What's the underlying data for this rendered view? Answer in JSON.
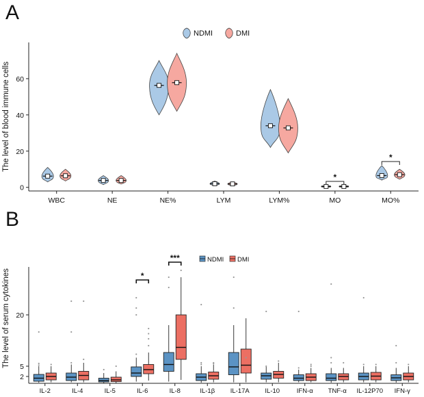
{
  "chart_data": [
    {
      "panel": "A",
      "type": "violin",
      "ylabel": "The level of blood immune cells",
      "ylim": [
        -2,
        80
      ],
      "yticks": [
        0,
        20,
        40,
        60
      ],
      "legend": {
        "position": "top",
        "entries": [
          {
            "name": "NDMI",
            "color": "#aac9e6"
          },
          {
            "name": "DMI",
            "color": "#f6a8a0"
          }
        ]
      },
      "categories": [
        "WBC",
        "NE",
        "NE%",
        "LYM",
        "LYM%",
        "MO",
        "MO%"
      ],
      "series": [
        {
          "name": "NDMI",
          "median": [
            6.2,
            3.8,
            56.3,
            2.0,
            34.0,
            0.5,
            6.5
          ],
          "min": [
            3.0,
            1.5,
            40,
            1.0,
            22,
            0.0,
            4.0
          ],
          "max": [
            11,
            6.5,
            70,
            3.5,
            54,
            1.0,
            12
          ]
        },
        {
          "name": "DMI",
          "median": [
            6.4,
            3.8,
            57.8,
            1.9,
            32.8,
            0.5,
            7.0
          ],
          "min": [
            3.5,
            1.8,
            42,
            1.0,
            19,
            0.0,
            4.5
          ],
          "max": [
            10,
            6.5,
            74,
            3.0,
            49,
            1.0,
            10
          ]
        }
      ],
      "significance": [
        {
          "category": "MO",
          "label": "*"
        },
        {
          "category": "MO%",
          "label": "*"
        }
      ]
    },
    {
      "panel": "B",
      "type": "boxplot",
      "ylabel": "The level of serum cytokines",
      "ylim": [
        0,
        34
      ],
      "yticks": [
        2,
        5,
        20
      ],
      "legend": {
        "position": "top",
        "entries": [
          {
            "name": "NDMI",
            "color": "#5b93c4"
          },
          {
            "name": "DMI",
            "color": "#ec6f63"
          }
        ]
      },
      "categories": [
        "IL-2",
        "IL-4",
        "IL-5",
        "IL-6",
        "IL-8",
        "IL-1β",
        "IL-17A",
        "IL-10",
        "IFN-α",
        "TNF-α",
        "IL-12P70",
        "IFN-γ"
      ],
      "series": [
        {
          "name": "NDMI",
          "boxes": [
            [
              0.2,
              0.6,
              1.5,
              2.6,
              5.0
            ],
            [
              0.3,
              0.8,
              1.8,
              3.0,
              5.5
            ],
            [
              0.1,
              0.4,
              0.8,
              1.5,
              3.0
            ],
            [
              0.5,
              2.0,
              3.0,
              4.8,
              7.5
            ],
            [
              0.5,
              3.5,
              5.5,
              9.0,
              17.0
            ],
            [
              0.2,
              0.8,
              1.8,
              2.8,
              5.0
            ],
            [
              0.3,
              2.5,
              4.8,
              9.0,
              17.0
            ],
            [
              0.3,
              1.2,
              2.2,
              3.0,
              5.0
            ],
            [
              0.3,
              0.8,
              1.5,
              2.5,
              4.0
            ],
            [
              0.2,
              0.8,
              1.5,
              2.8,
              4.5
            ],
            [
              0.3,
              1.0,
              2.0,
              3.0,
              5.0
            ],
            [
              0.2,
              0.8,
              1.6,
              2.5,
              4.5
            ]
          ],
          "outliers": [
            [
              15.0,
              5.8,
              5.3
            ],
            [
              24.0,
              15.0,
              6.0
            ],
            [
              4.0
            ],
            [
              25.0,
              22.0,
              20.0,
              8.5
            ],
            [
              31.0,
              28.0
            ],
            [
              23.0,
              6.0,
              5.5
            ],
            [
              31.0,
              22.0
            ],
            [
              21.0,
              5.0
            ],
            [
              21.0,
              4.5
            ],
            [
              29.0,
              7.5,
              6.0
            ],
            [
              25.0,
              5.5
            ],
            [
              11.0,
              6.0
            ]
          ]
        },
        {
          "name": "DMI",
          "boxes": [
            [
              0.3,
              1.0,
              2.0,
              3.0,
              5.0
            ],
            [
              0.3,
              1.0,
              2.3,
              3.5,
              6.0
            ],
            [
              0.1,
              0.5,
              1.0,
              1.8,
              3.5
            ],
            [
              0.8,
              2.8,
              4.0,
              5.5,
              9.0
            ],
            [
              1.0,
              7.0,
              10.5,
              20.0,
              31.0
            ],
            [
              0.3,
              1.2,
              2.2,
              3.3,
              5.5
            ],
            [
              0.3,
              3.0,
              5.3,
              10.0,
              19.0
            ],
            [
              0.3,
              1.5,
              2.6,
              3.5,
              6.0
            ],
            [
              0.3,
              0.8,
              1.8,
              2.8,
              4.5
            ],
            [
              0.3,
              1.0,
              2.0,
              2.8,
              4.5
            ],
            [
              0.3,
              1.0,
              2.1,
              3.2,
              5.0
            ],
            [
              0.3,
              1.0,
              2.0,
              3.0,
              5.0
            ]
          ],
          "outliers": [
            [
              5.5
            ],
            [
              24.0,
              7.0
            ],
            [
              5.0
            ],
            [
              16.0,
              14.5,
              13.0,
              11.0
            ],
            [
              33.0
            ],
            [
              6.0,
              5.8
            ],
            [
              7.5
            ],
            [
              6.5
            ],
            [
              5.5,
              5.0
            ],
            [
              6.0
            ],
            [
              5.5
            ],
            [
              5.5
            ]
          ]
        }
      ],
      "significance": [
        {
          "category": "IL-6",
          "label": "*"
        },
        {
          "category": "IL-8",
          "label": "***"
        }
      ]
    }
  ]
}
